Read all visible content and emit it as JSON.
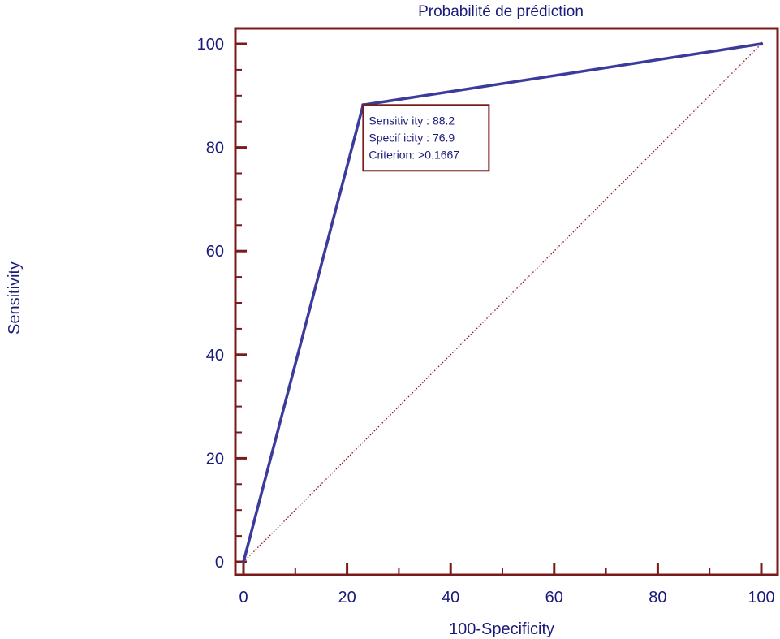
{
  "chart_data": {
    "type": "line",
    "title": "Probabilité de prédiction",
    "xlabel": "100-Specificity",
    "ylabel": "Sensitivity",
    "xlim": [
      0,
      100
    ],
    "ylim": [
      0,
      100
    ],
    "x_ticks": [
      0,
      20,
      40,
      60,
      80,
      100
    ],
    "y_ticks": [
      0,
      20,
      40,
      60,
      80,
      100
    ],
    "series": [
      {
        "x": [
          0,
          23.1,
          100
        ],
        "y": [
          0,
          88.2,
          100
        ],
        "color": "#3b3b9c",
        "style": "solid"
      },
      {
        "x": [
          0,
          100
        ],
        "y": [
          0,
          100
        ],
        "color": "#7a1a1a",
        "style": "dotted"
      }
    ],
    "annotation": {
      "x": 23.1,
      "y": 88.2,
      "lines": [
        "Sensitiv ity : 88.2",
        "Specif icity : 76.9",
        "Criterion: >0.1667"
      ]
    },
    "grid": false,
    "colors": {
      "frame": "#7a1a1a",
      "text": "#1a1a7a"
    }
  }
}
